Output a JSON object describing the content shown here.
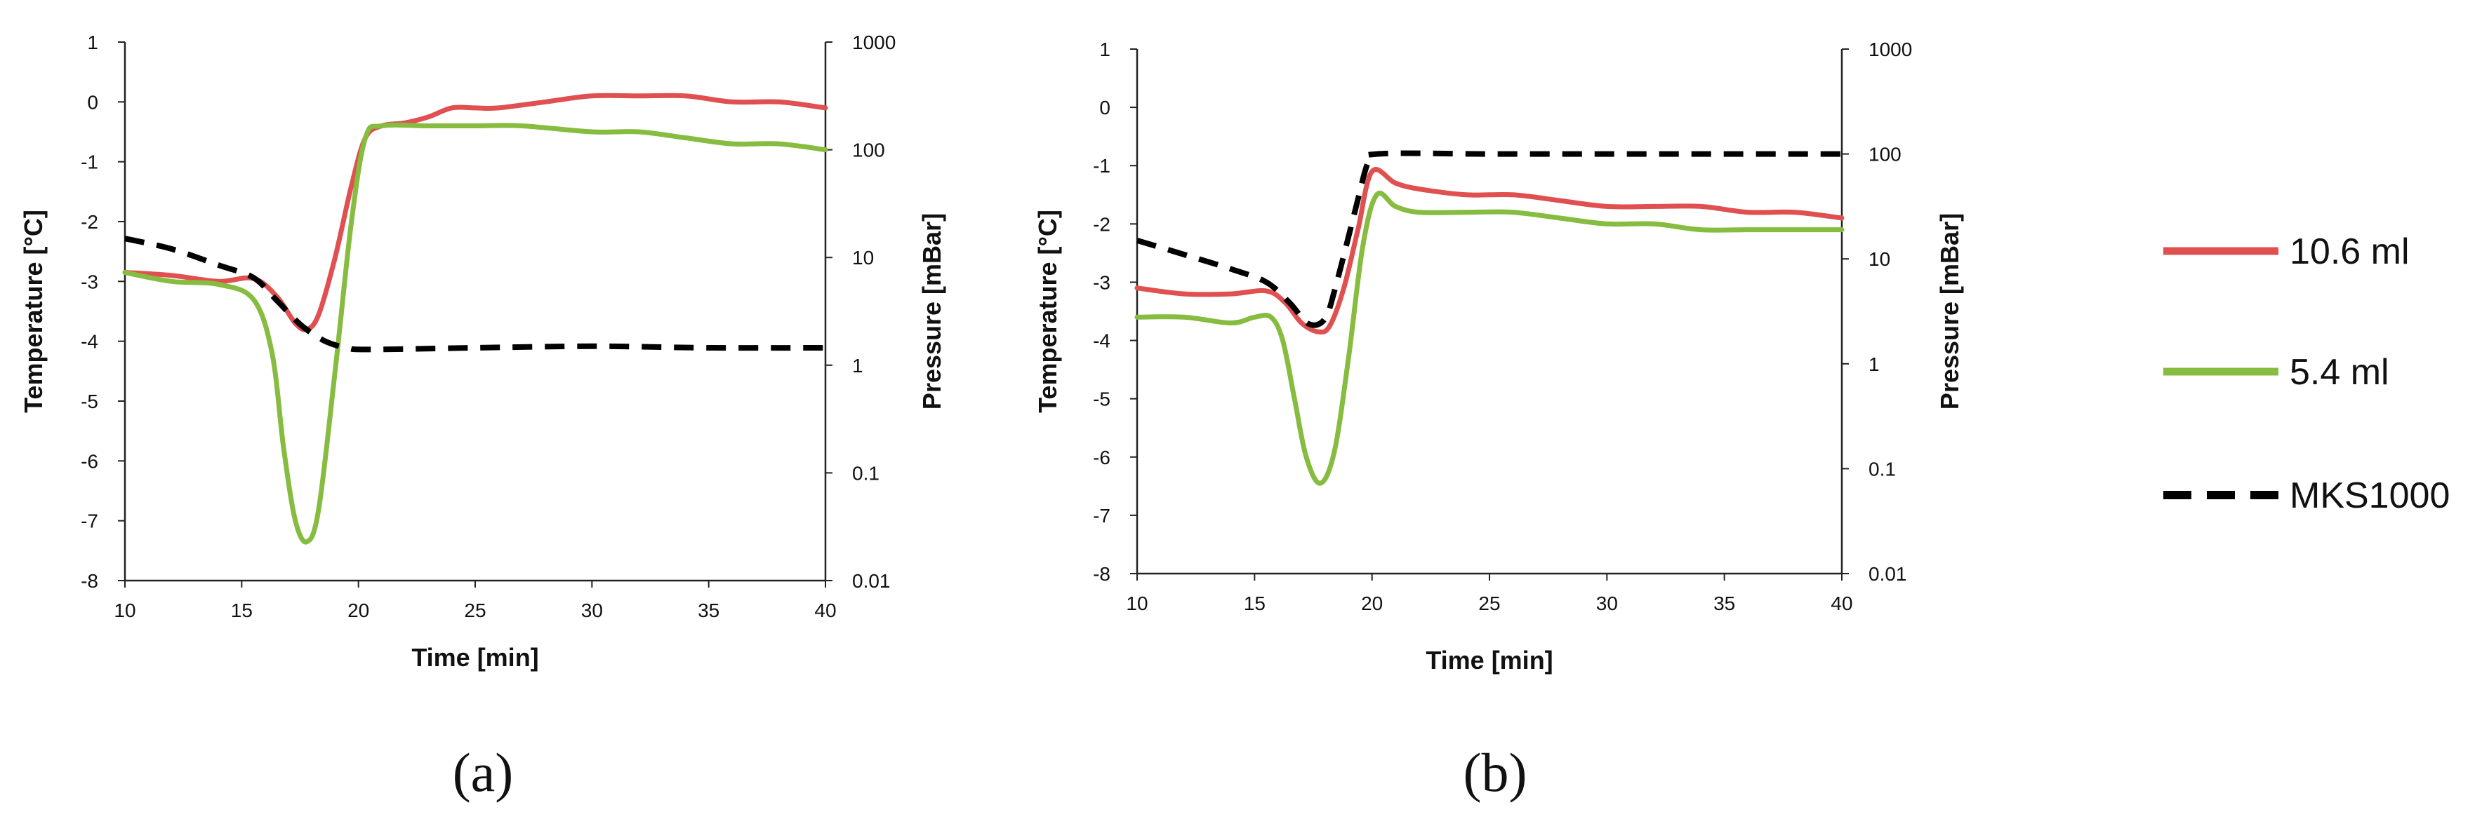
{
  "legend": [
    {
      "label": "10.6 ml",
      "color": "#e05050",
      "dash": "solid"
    },
    {
      "label": "5.4 ml",
      "color": "#86bc3f",
      "dash": "solid"
    },
    {
      "label": "MKS1000",
      "color": "#000000",
      "dash": "dashed"
    }
  ],
  "chart_data": [
    {
      "type": "line",
      "panel_label": "(a)",
      "xlabel": "Time [min]",
      "ylabel": "Temperature [°C]",
      "y2label": "Pressure [mBar]",
      "xlim": [
        10,
        40
      ],
      "ylim": [
        -8,
        1
      ],
      "y2lim": [
        0.01,
        1000
      ],
      "y2scale": "log",
      "xticks": [
        "10",
        "15",
        "20",
        "25",
        "30",
        "35",
        "40"
      ],
      "yticks": [
        "1",
        "0",
        "-1",
        "-2",
        "-3",
        "-4",
        "-5",
        "-6",
        "-7",
        "-8"
      ],
      "y2ticks": [
        "1000",
        "100",
        "10",
        "1",
        "0.1",
        "0.01"
      ],
      "series": [
        {
          "name": "10.6 ml",
          "axis": "left",
          "x": [
            10,
            12,
            14,
            15.5,
            16.5,
            17.3,
            17.8,
            18.3,
            19,
            19.7,
            20.3,
            21,
            22,
            23,
            24,
            25,
            26,
            28,
            30,
            32,
            34,
            36,
            38,
            40
          ],
          "y": [
            -2.85,
            -2.9,
            -3.0,
            -2.95,
            -3.25,
            -3.7,
            -3.8,
            -3.55,
            -2.6,
            -1.4,
            -0.6,
            -0.4,
            -0.35,
            -0.25,
            -0.1,
            -0.1,
            -0.1,
            0.0,
            0.1,
            0.1,
            0.1,
            0.0,
            0.0,
            -0.1
          ]
        },
        {
          "name": "5.4 ml",
          "axis": "left",
          "x": [
            10,
            12,
            14,
            15.5,
            16.3,
            16.8,
            17.3,
            17.8,
            18.3,
            19,
            19.7,
            20.3,
            21,
            23,
            25,
            27,
            30,
            32,
            34,
            36,
            38,
            40
          ],
          "y": [
            -2.85,
            -3.0,
            -3.05,
            -3.3,
            -4.2,
            -5.8,
            -7.0,
            -7.35,
            -6.8,
            -4.5,
            -2.0,
            -0.6,
            -0.4,
            -0.4,
            -0.4,
            -0.4,
            -0.5,
            -0.5,
            -0.6,
            -0.7,
            -0.7,
            -0.8
          ]
        },
        {
          "name": "MKS1000",
          "axis": "right",
          "x": [
            10,
            12,
            14,
            15.5,
            16.5,
            17.5,
            18.5,
            19.5,
            20.5,
            25,
            30,
            35,
            40
          ],
          "y": [
            15,
            12,
            8.5,
            6.5,
            4.0,
            2.4,
            1.7,
            1.45,
            1.4,
            1.45,
            1.5,
            1.45,
            1.45
          ]
        }
      ]
    },
    {
      "type": "line",
      "panel_label": "(b)",
      "xlabel": "Time [min]",
      "ylabel": "Temperature [°C]",
      "y2label": "Pressure [mBar]",
      "xlim": [
        10,
        40
      ],
      "ylim": [
        -8,
        1
      ],
      "y2lim": [
        0.01,
        1000
      ],
      "y2scale": "log",
      "xticks": [
        "10",
        "15",
        "20",
        "25",
        "30",
        "35",
        "40"
      ],
      "yticks": [
        "1",
        "0",
        "-1",
        "-2",
        "-3",
        "-4",
        "-5",
        "-6",
        "-7",
        "-8"
      ],
      "y2ticks": [
        "1000",
        "100",
        "10",
        "1",
        "0.1",
        "0.01"
      ],
      "series": [
        {
          "name": "10.6 ml",
          "axis": "left",
          "x": [
            10,
            12,
            14,
            15.5,
            16.3,
            17,
            17.7,
            18.2,
            18.8,
            19.4,
            20,
            21,
            22,
            24,
            26,
            28,
            30,
            32,
            34,
            36,
            38,
            40
          ],
          "y": [
            -3.1,
            -3.2,
            -3.2,
            -3.15,
            -3.35,
            -3.7,
            -3.85,
            -3.75,
            -3.1,
            -2.1,
            -1.1,
            -1.3,
            -1.4,
            -1.5,
            -1.5,
            -1.6,
            -1.7,
            -1.7,
            -1.7,
            -1.8,
            -1.8,
            -1.9
          ]
        },
        {
          "name": "5.4 ml",
          "axis": "left",
          "x": [
            10,
            12,
            14,
            15,
            15.7,
            16.2,
            16.7,
            17.2,
            17.8,
            18.4,
            19,
            19.6,
            20.2,
            21,
            22,
            24,
            26,
            28,
            30,
            32,
            34,
            36,
            38,
            40
          ],
          "y": [
            -3.6,
            -3.6,
            -3.7,
            -3.6,
            -3.6,
            -4.0,
            -5.0,
            -6.0,
            -6.45,
            -5.9,
            -4.3,
            -2.4,
            -1.5,
            -1.7,
            -1.8,
            -1.8,
            -1.8,
            -1.9,
            -2.0,
            -2.0,
            -2.1,
            -2.1,
            -2.1,
            -2.1
          ]
        },
        {
          "name": "MKS1000",
          "axis": "right",
          "x": [
            10,
            12,
            14,
            15.5,
            16.5,
            17.3,
            18,
            18.5,
            19.3,
            19.8,
            20.2,
            25,
            30,
            35,
            40
          ],
          "y": [
            15,
            11,
            8,
            6.0,
            3.8,
            2.4,
            2.7,
            6,
            30,
            80,
            100,
            100,
            100,
            100,
            100
          ]
        }
      ]
    }
  ]
}
